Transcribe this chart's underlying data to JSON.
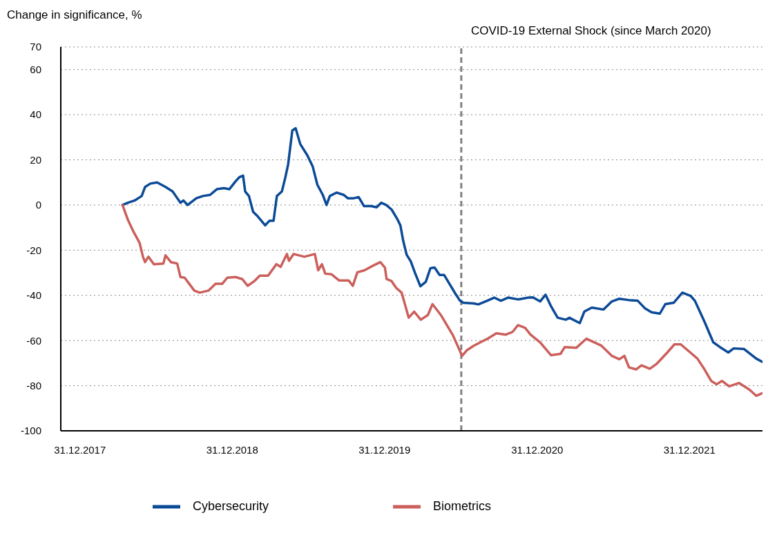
{
  "chart_data": {
    "type": "line",
    "ylabel": "Change in significance, %",
    "xlim": [
      "2017-11-15",
      "2022-06-24"
    ],
    "xticks": [
      {
        "value": "2017-12-31",
        "label": "31.12.2017"
      },
      {
        "value": "2018-12-31",
        "label": "31.12.2018"
      },
      {
        "value": "2019-12-31",
        "label": "31.12.2019"
      },
      {
        "value": "2020-12-31",
        "label": "31.12.2020"
      },
      {
        "value": "2021-12-31",
        "label": "31.12.2021"
      }
    ],
    "ylim": [
      -100,
      70
    ],
    "yticks": [
      -100,
      -80,
      -60,
      -40,
      -20,
      0,
      20,
      40,
      60,
      70
    ],
    "grid": "y",
    "legend": "bottom",
    "marker": "none",
    "line_style": "solid",
    "ref_lines": [
      {
        "axis": "x",
        "value": "2020-07-02",
        "label": "COVID-19 External Shock (since March 2020)",
        "color": "#808080",
        "line_style": "dashed"
      }
    ],
    "series": [
      {
        "name": "Cybersecurity",
        "color": "#0b4a96",
        "x": [
          "2018-04-12",
          "2018-04-25",
          "2018-05-11",
          "2018-05-28",
          "2018-06-05",
          "2018-06-18",
          "2018-07-04",
          "2018-07-24",
          "2018-08-10",
          "2018-08-29",
          "2018-09-05",
          "2018-09-15",
          "2018-10-06",
          "2018-10-22",
          "2018-11-08",
          "2018-11-24",
          "2018-12-11",
          "2018-12-24",
          "2019-01-08",
          "2019-01-17",
          "2019-01-26",
          "2019-01-31",
          "2019-02-09",
          "2019-02-19",
          "2019-03-02",
          "2019-03-20",
          "2019-03-30",
          "2019-04-09",
          "2019-04-17",
          "2019-04-29",
          "2019-05-07",
          "2019-05-14",
          "2019-05-24",
          "2019-06-01",
          "2019-06-12",
          "2019-06-29",
          "2019-07-12",
          "2019-07-23",
          "2019-08-05",
          "2019-08-14",
          "2019-08-22",
          "2019-09-07",
          "2019-09-24",
          "2019-10-04",
          "2019-10-18",
          "2019-10-30",
          "2019-11-12",
          "2019-11-29",
          "2019-12-12",
          "2019-12-23",
          "2020-01-04",
          "2020-01-17",
          "2020-01-30",
          "2020-02-07",
          "2020-02-14",
          "2020-02-22",
          "2020-03-03",
          "2020-03-13",
          "2020-03-26",
          "2020-04-08",
          "2020-04-19",
          "2020-04-29",
          "2020-05-11",
          "2020-05-22",
          "2020-06-04",
          "2020-06-17",
          "2020-06-29",
          "2020-07-07",
          "2020-08-01",
          "2020-08-12",
          "2020-09-02",
          "2020-09-19",
          "2020-10-05",
          "2020-10-22",
          "2020-11-15",
          "2020-12-10",
          "2020-12-21",
          "2021-01-07",
          "2021-01-20",
          "2021-02-02",
          "2021-02-18",
          "2021-03-10",
          "2021-03-18",
          "2021-04-12",
          "2021-04-23",
          "2021-05-11",
          "2021-06-08",
          "2021-06-28",
          "2021-07-16",
          "2021-08-08",
          "2021-08-29",
          "2021-09-15",
          "2021-10-01",
          "2021-10-21",
          "2021-11-03",
          "2021-11-23",
          "2021-12-14",
          "2022-01-03",
          "2022-01-13",
          "2022-02-05",
          "2022-02-26",
          "2022-03-14",
          "2022-04-03",
          "2022-04-16",
          "2022-05-11",
          "2022-06-09",
          "2022-06-24"
        ],
        "values": [
          0,
          1,
          2,
          4,
          8,
          9.5,
          10,
          8,
          6,
          1,
          2,
          0,
          3,
          4,
          4.5,
          7,
          7.5,
          7,
          10.5,
          12.3,
          13,
          6,
          4,
          -3,
          -5,
          -9,
          -7,
          -7,
          4,
          6,
          12,
          18,
          33,
          34,
          27,
          22,
          17,
          9,
          4.5,
          0,
          4,
          5.5,
          4.5,
          3,
          3,
          3.5,
          -0.5,
          -0.5,
          -1,
          1,
          0,
          -2,
          -6,
          -9,
          -16,
          -22,
          -25,
          -30,
          -36,
          -34,
          -28,
          -27.7,
          -31,
          -31,
          -35,
          -39,
          -42.4,
          -43.3,
          -43.6,
          -44,
          -42.4,
          -41,
          -42.4,
          -41,
          -41.8,
          -41,
          -40.9,
          -42.7,
          -39.7,
          -44.8,
          -49.9,
          -50.8,
          -49.9,
          -52.3,
          -47.2,
          -45.4,
          -46.3,
          -42.7,
          -41.5,
          -42.1,
          -42.4,
          -45.7,
          -47.5,
          -48.1,
          -43.9,
          -43.3,
          -38.8,
          -40.3,
          -42.4,
          -51.7,
          -60.8,
          -62.9,
          -65.3,
          -63.5,
          -63.8,
          -68,
          -69.5
        ]
      },
      {
        "name": "Biometrics",
        "color": "#cb5f5b",
        "x": [
          "2018-04-12",
          "2018-04-25",
          "2018-05-08",
          "2018-05-23",
          "2018-05-31",
          "2018-06-05",
          "2018-06-13",
          "2018-06-26",
          "2018-07-19",
          "2018-07-24",
          "2018-08-06",
          "2018-08-21",
          "2018-08-29",
          "2018-09-08",
          "2018-09-19",
          "2018-10-01",
          "2018-10-14",
          "2018-11-04",
          "2018-11-21",
          "2018-12-07",
          "2018-12-19",
          "2019-01-08",
          "2019-01-24",
          "2019-02-06",
          "2019-02-22",
          "2019-03-07",
          "2019-03-27",
          "2019-04-16",
          "2019-04-26",
          "2019-05-11",
          "2019-05-16",
          "2019-05-27",
          "2019-06-22",
          "2019-07-17",
          "2019-07-25",
          "2019-08-03",
          "2019-08-11",
          "2019-08-26",
          "2019-09-13",
          "2019-10-06",
          "2019-10-16",
          "2019-10-27",
          "2019-11-13",
          "2019-12-04",
          "2019-12-21",
          "2020-01-01",
          "2020-01-05",
          "2020-01-17",
          "2020-01-28",
          "2020-02-10",
          "2020-02-27",
          "2020-03-11",
          "2020-03-27",
          "2020-04-13",
          "2020-04-24",
          "2020-05-14",
          "2020-06-12",
          "2020-07-04",
          "2020-07-15",
          "2020-08-01",
          "2020-08-17",
          "2020-09-06",
          "2020-09-24",
          "2020-10-17",
          "2020-11-02",
          "2020-11-15",
          "2020-12-02",
          "2020-12-15",
          "2021-01-07",
          "2021-02-02",
          "2021-02-25",
          "2021-03-07",
          "2021-04-04",
          "2021-04-28",
          "2021-06-03",
          "2021-06-28",
          "2021-07-16",
          "2021-07-28",
          "2021-08-08",
          "2021-08-25",
          "2021-09-07",
          "2021-09-27",
          "2021-10-13",
          "2021-11-08",
          "2021-11-25",
          "2021-12-10",
          "2021-12-31",
          "2022-01-19",
          "2022-02-05",
          "2022-02-21",
          "2022-03-06",
          "2022-03-19",
          "2022-04-05",
          "2022-04-29",
          "2022-05-24",
          "2022-06-09",
          "2022-06-24"
        ],
        "values": [
          0,
          -6.6,
          -11.7,
          -16.8,
          -22.9,
          -25.3,
          -22.9,
          -26.2,
          -25.9,
          -22.3,
          -25.3,
          -25.9,
          -31.9,
          -32.2,
          -34.9,
          -37.9,
          -38.8,
          -37.9,
          -34.9,
          -34.9,
          -32.2,
          -31.9,
          -32.8,
          -35.8,
          -33.7,
          -31.3,
          -31.3,
          -26.2,
          -27.4,
          -21.7,
          -24.7,
          -21.7,
          -22.9,
          -21.7,
          -28.9,
          -26.2,
          -30.4,
          -30.7,
          -33.4,
          -33.4,
          -35.8,
          -29.8,
          -28.9,
          -26.8,
          -25.3,
          -27.7,
          -32.8,
          -33.7,
          -36.7,
          -38.8,
          -49.9,
          -47.2,
          -50.8,
          -48.7,
          -43.9,
          -48.7,
          -57.7,
          -66.8,
          -64.4,
          -62.3,
          -60.8,
          -58.9,
          -56.8,
          -57.4,
          -56.2,
          -53.2,
          -54.4,
          -57.4,
          -60.8,
          -66.5,
          -65.9,
          -62.9,
          -63.2,
          -59.2,
          -62.3,
          -66.8,
          -68.3,
          -66.8,
          -71.9,
          -72.8,
          -71,
          -72.5,
          -70.4,
          -65.3,
          -61.7,
          -61.7,
          -65,
          -68,
          -72.8,
          -77.9,
          -79.4,
          -77.9,
          -80.3,
          -78.8,
          -81.8,
          -84.5,
          -83.3
        ]
      }
    ]
  }
}
